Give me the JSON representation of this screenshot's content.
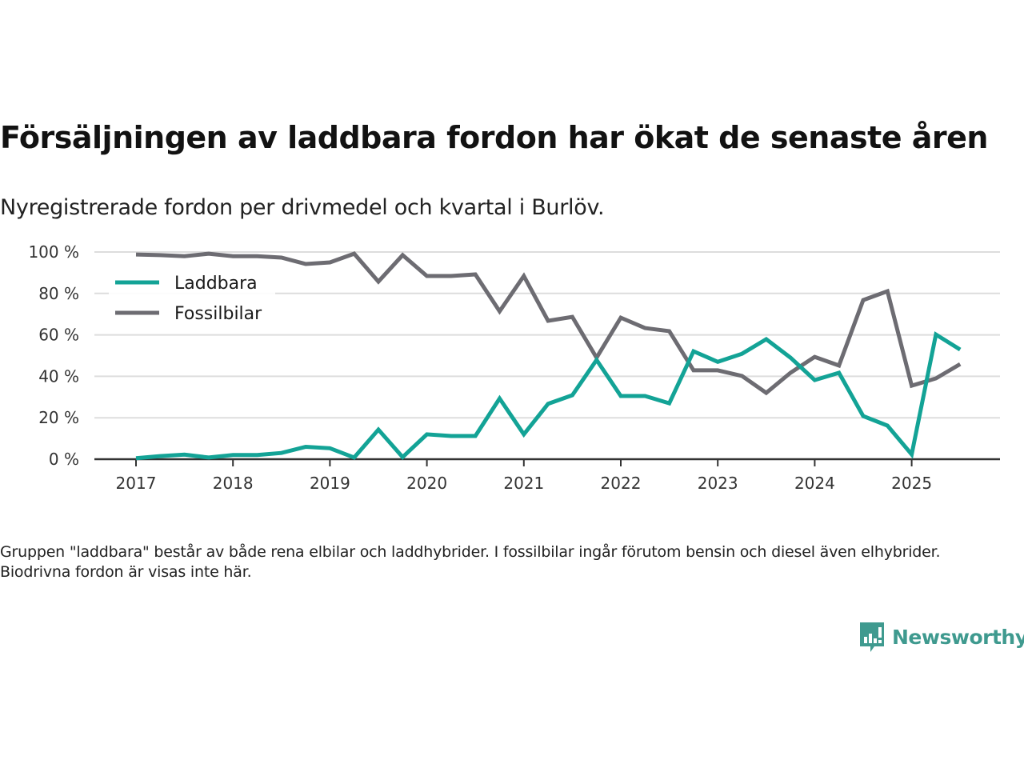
{
  "header": {
    "title": "Försäljningen av laddbara fordon har ökat de senaste åren",
    "subtitle": "Nyregistrerade fordon per drivmedel och kvartal i Burlöv."
  },
  "footer": {
    "note": "Gruppen \"laddbara\" består av både rena elbilar och laddhybrider. I fossilbilar ingår förutom bensin och diesel även elhybrider. Biodrivna fordon är visas inte här.",
    "brand": "Newsworthy",
    "brand_icon": "bar-chart-speech-bubble-icon",
    "brand_color": "#3f9a8f"
  },
  "chart_data": {
    "type": "line",
    "title": "Försäljningen av laddbara fordon har ökat de senaste åren",
    "subtitle": "Nyregistrerade fordon per drivmedel och kvartal i Burlöv.",
    "xlabel": "",
    "ylabel": "",
    "x": [
      "2017Q1",
      "2017Q2",
      "2017Q3",
      "2017Q4",
      "2018Q1",
      "2018Q2",
      "2018Q3",
      "2018Q4",
      "2019Q1",
      "2019Q2",
      "2019Q3",
      "2019Q4",
      "2020Q1",
      "2020Q2",
      "2020Q3",
      "2020Q4",
      "2021Q1",
      "2021Q2",
      "2021Q3",
      "2021Q4",
      "2022Q1",
      "2022Q2",
      "2022Q3",
      "2022Q4",
      "2023Q1",
      "2023Q2",
      "2023Q3",
      "2023Q4",
      "2024Q1",
      "2024Q2",
      "2024Q3",
      "2024Q4",
      "2025Q1",
      "2025Q2",
      "2025Q3"
    ],
    "x_ticks": [
      "2017",
      "2018",
      "2019",
      "2020",
      "2021",
      "2022",
      "2023",
      "2024",
      "2025"
    ],
    "y_ticks": [
      "0 %",
      "20 %",
      "40 %",
      "60 %",
      "80 %",
      "100 %"
    ],
    "ylim": [
      0,
      100
    ],
    "grid": true,
    "legend_position": "top-left",
    "series": [
      {
        "name": "Laddbara",
        "color": "#13a396",
        "values": [
          0.5,
          1.5,
          2.2,
          0.8,
          2,
          2,
          3,
          6,
          5.3,
          0.8,
          14.3,
          1,
          12,
          11.2,
          11.2,
          29.3,
          12,
          26.7,
          30.9,
          47.9,
          30.5,
          30.5,
          27,
          52.1,
          47,
          50.9,
          57.9,
          49,
          38.2,
          41.7,
          20.8,
          16.2,
          2.3,
          60.2,
          52.9
        ]
      },
      {
        "name": "Fossilbilar",
        "color": "#6d6c72",
        "values": [
          98.8,
          98.5,
          98,
          99.2,
          98,
          98,
          97.3,
          94.2,
          95,
          99.2,
          85.7,
          98.5,
          88.4,
          88.4,
          89.2,
          71.4,
          88.4,
          66.8,
          68.7,
          49,
          68.3,
          63.3,
          61.8,
          42.9,
          42.9,
          40.2,
          32,
          41.7,
          49.4,
          45.2,
          76.8,
          81.1,
          35.5,
          39,
          45.9
        ]
      }
    ]
  }
}
